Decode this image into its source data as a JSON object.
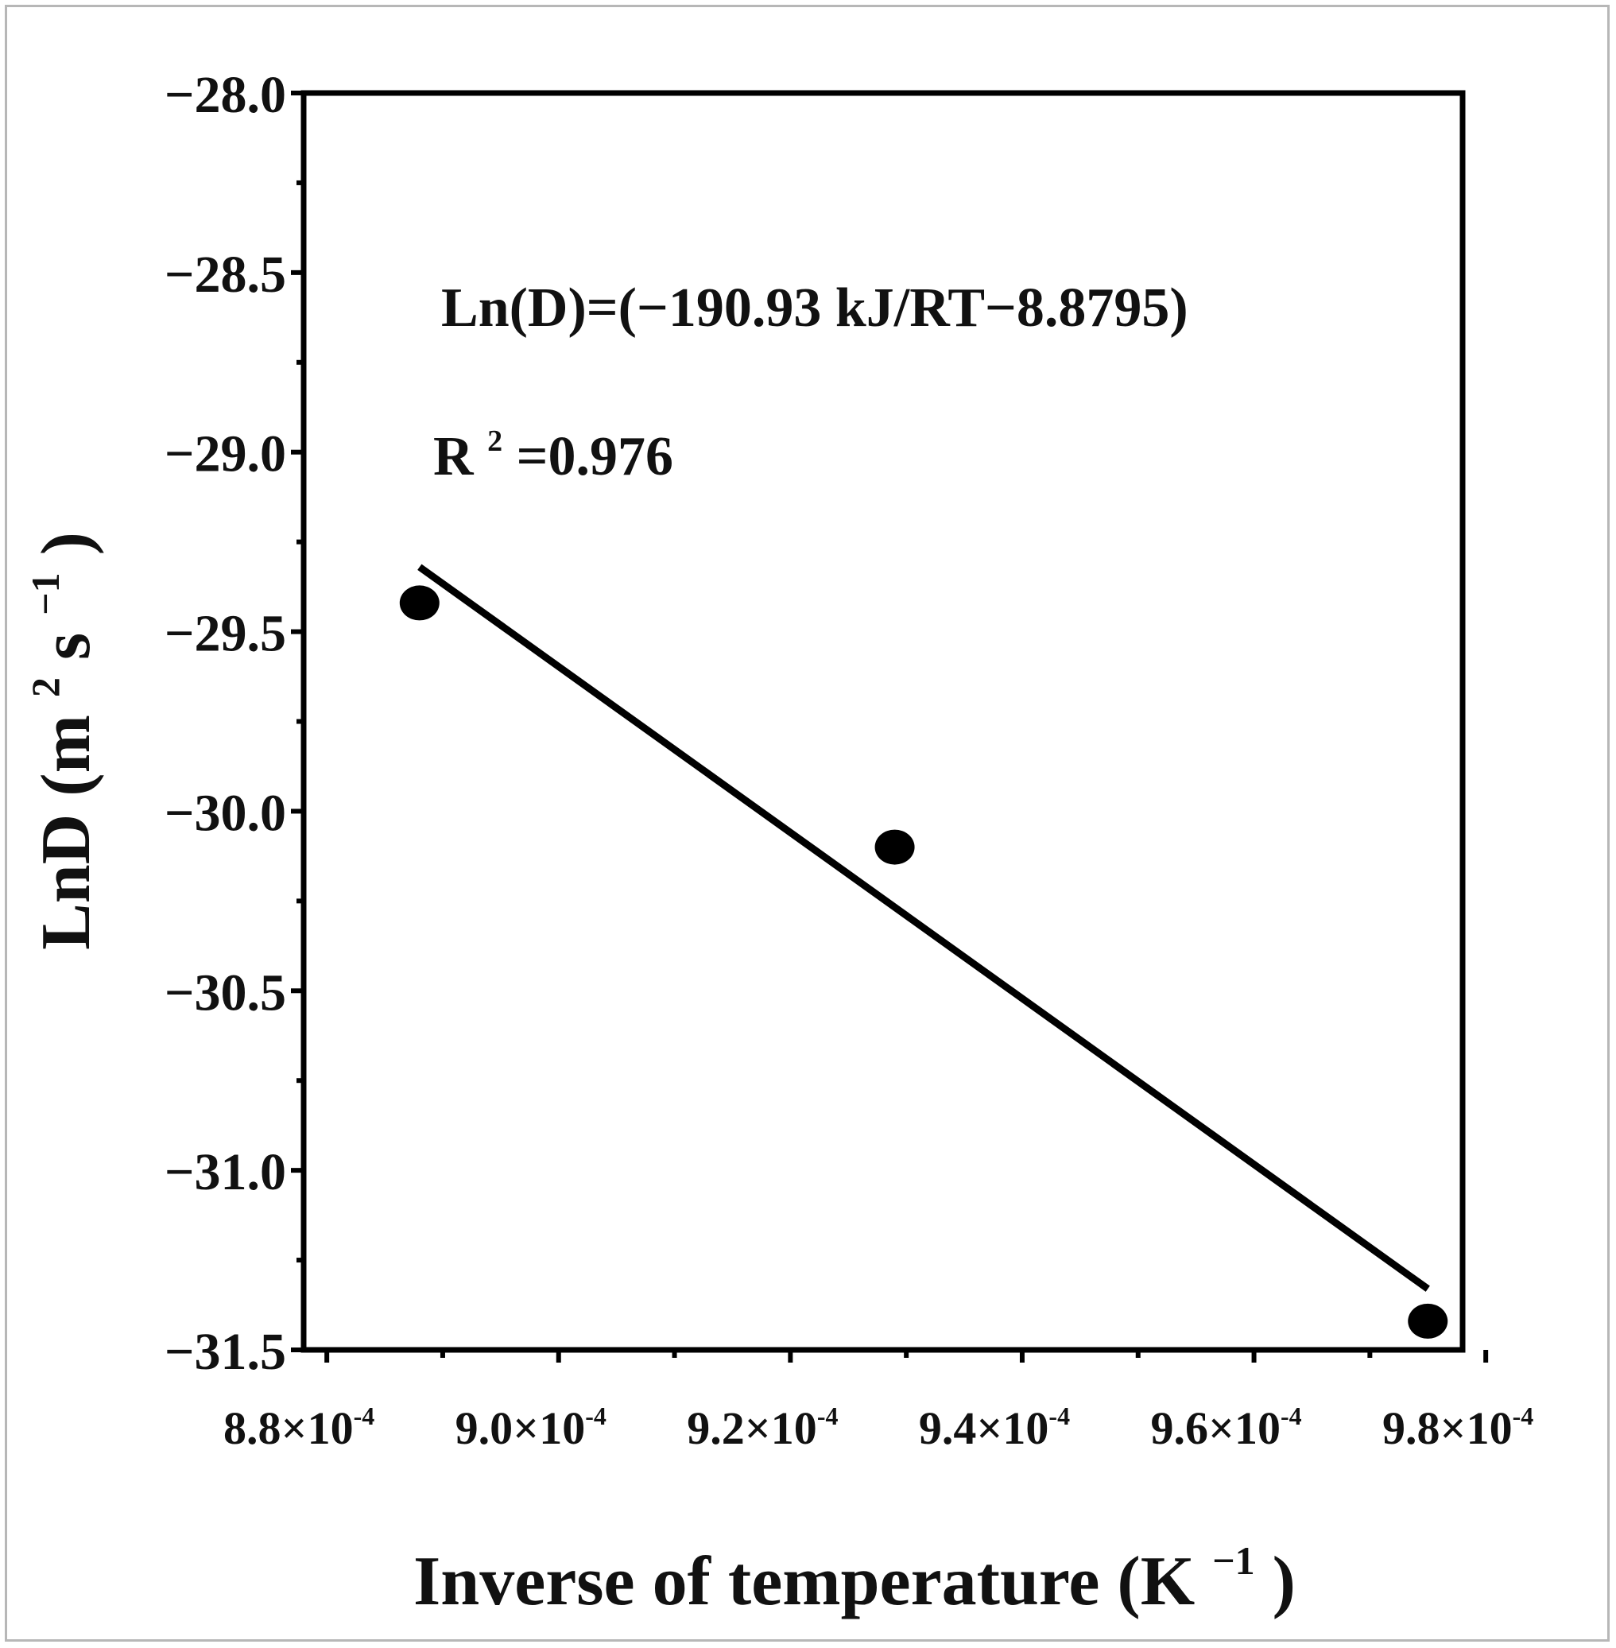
{
  "chart_data": {
    "type": "scatter",
    "xlabel": "Inverse of temperature (K",
    "xlabel_sup": "−1",
    "xlabel_close": ")",
    "ylabel": "LnD (m",
    "ylabel_sup1": "2",
    "ylabel_mid": "s",
    "ylabel_sup2": "−1",
    "ylabel_close": ")",
    "xlim": [
      0.000878,
      0.000978
    ],
    "ylim": [
      -31.5,
      -28.0
    ],
    "x_ticks": [
      0.00088,
      0.0009,
      0.00092,
      0.00094,
      0.00096,
      0.00098
    ],
    "x_tick_labels": [
      {
        "base": "8.8×10",
        "exp": "-4"
      },
      {
        "base": "9.0×10",
        "exp": "-4"
      },
      {
        "base": "9.2×10",
        "exp": "-4"
      },
      {
        "base": "9.4×10",
        "exp": "-4"
      },
      {
        "base": "9.6×10",
        "exp": "-4"
      },
      {
        "base": "9.8×10",
        "exp": "-4"
      }
    ],
    "y_ticks": [
      -28.0,
      -28.5,
      -29.0,
      -29.5,
      -30.0,
      -30.5,
      -31.0,
      -31.5
    ],
    "y_tick_labels": [
      "−28.0",
      "−28.5",
      "−29.0",
      "−29.5",
      "−30.0",
      "−30.5",
      "−31.0",
      "−31.5"
    ],
    "points": [
      {
        "x": 0.000888,
        "y": -29.42
      },
      {
        "x": 0.000929,
        "y": -30.1
      },
      {
        "x": 0.000975,
        "y": -31.42
      }
    ],
    "fit_line": {
      "x": [
        0.000888,
        0.000975
      ],
      "y": [
        -29.32,
        -31.33
      ]
    },
    "annotations": {
      "equation": "Ln(D)=(−190.93 kJ/RT−8.8795)",
      "r2_label": "R",
      "r2_sup": "2",
      "r2_value": "=0.976"
    },
    "grid": false,
    "colors": {
      "marker": "#000000",
      "line": "#000000",
      "axis": "#000000"
    }
  }
}
